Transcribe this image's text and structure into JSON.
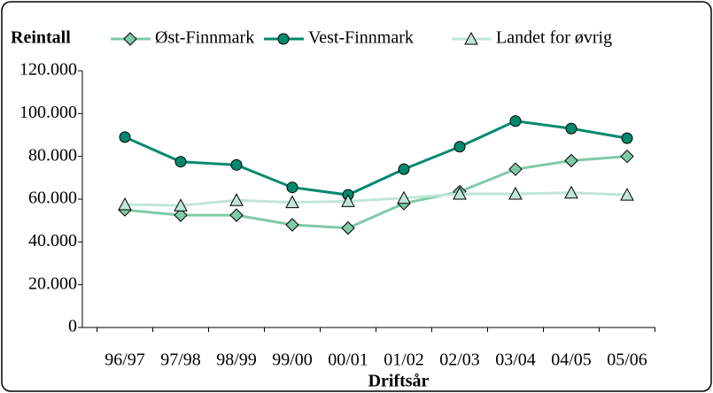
{
  "chart_data": {
    "type": "line",
    "title": "Reintall",
    "x_label": "Driftsår",
    "categories": [
      "96/97",
      "97/98",
      "98/99",
      "99/00",
      "00/01",
      "01/02",
      "02/03",
      "03/04",
      "04/05",
      "05/06"
    ],
    "series": [
      {
        "name": "Øst-Finnmark",
        "color": "#7fcaa8",
        "marker": "diamond",
        "values": [
          55000,
          52500,
          52500,
          48000,
          46500,
          58000,
          63500,
          74000,
          78000,
          80000
        ]
      },
      {
        "name": "Vest-Finnmark",
        "color": "#00896d",
        "marker": "circle",
        "values": [
          89000,
          77500,
          76000,
          65500,
          62000,
          74000,
          84500,
          96500,
          93000,
          88500
        ]
      },
      {
        "name": "Landet for øvrig",
        "color": "#c0e6d9",
        "marker": "triangle",
        "values": [
          57500,
          57000,
          59500,
          58500,
          59000,
          60500,
          62500,
          62500,
          63000,
          62000
        ]
      }
    ],
    "ylim": [
      0,
      120000
    ],
    "yticks": [
      0,
      {
        "value": 20000,
        "label": "20.000"
      },
      {
        "value": 40000,
        "label": "40.000"
      },
      {
        "value": 60000,
        "label": "60.000"
      },
      {
        "value": 80000,
        "label": "80.000"
      },
      {
        "value": 100000,
        "label": "100.000"
      },
      {
        "value": 120000,
        "label": "120.000"
      }
    ]
  }
}
